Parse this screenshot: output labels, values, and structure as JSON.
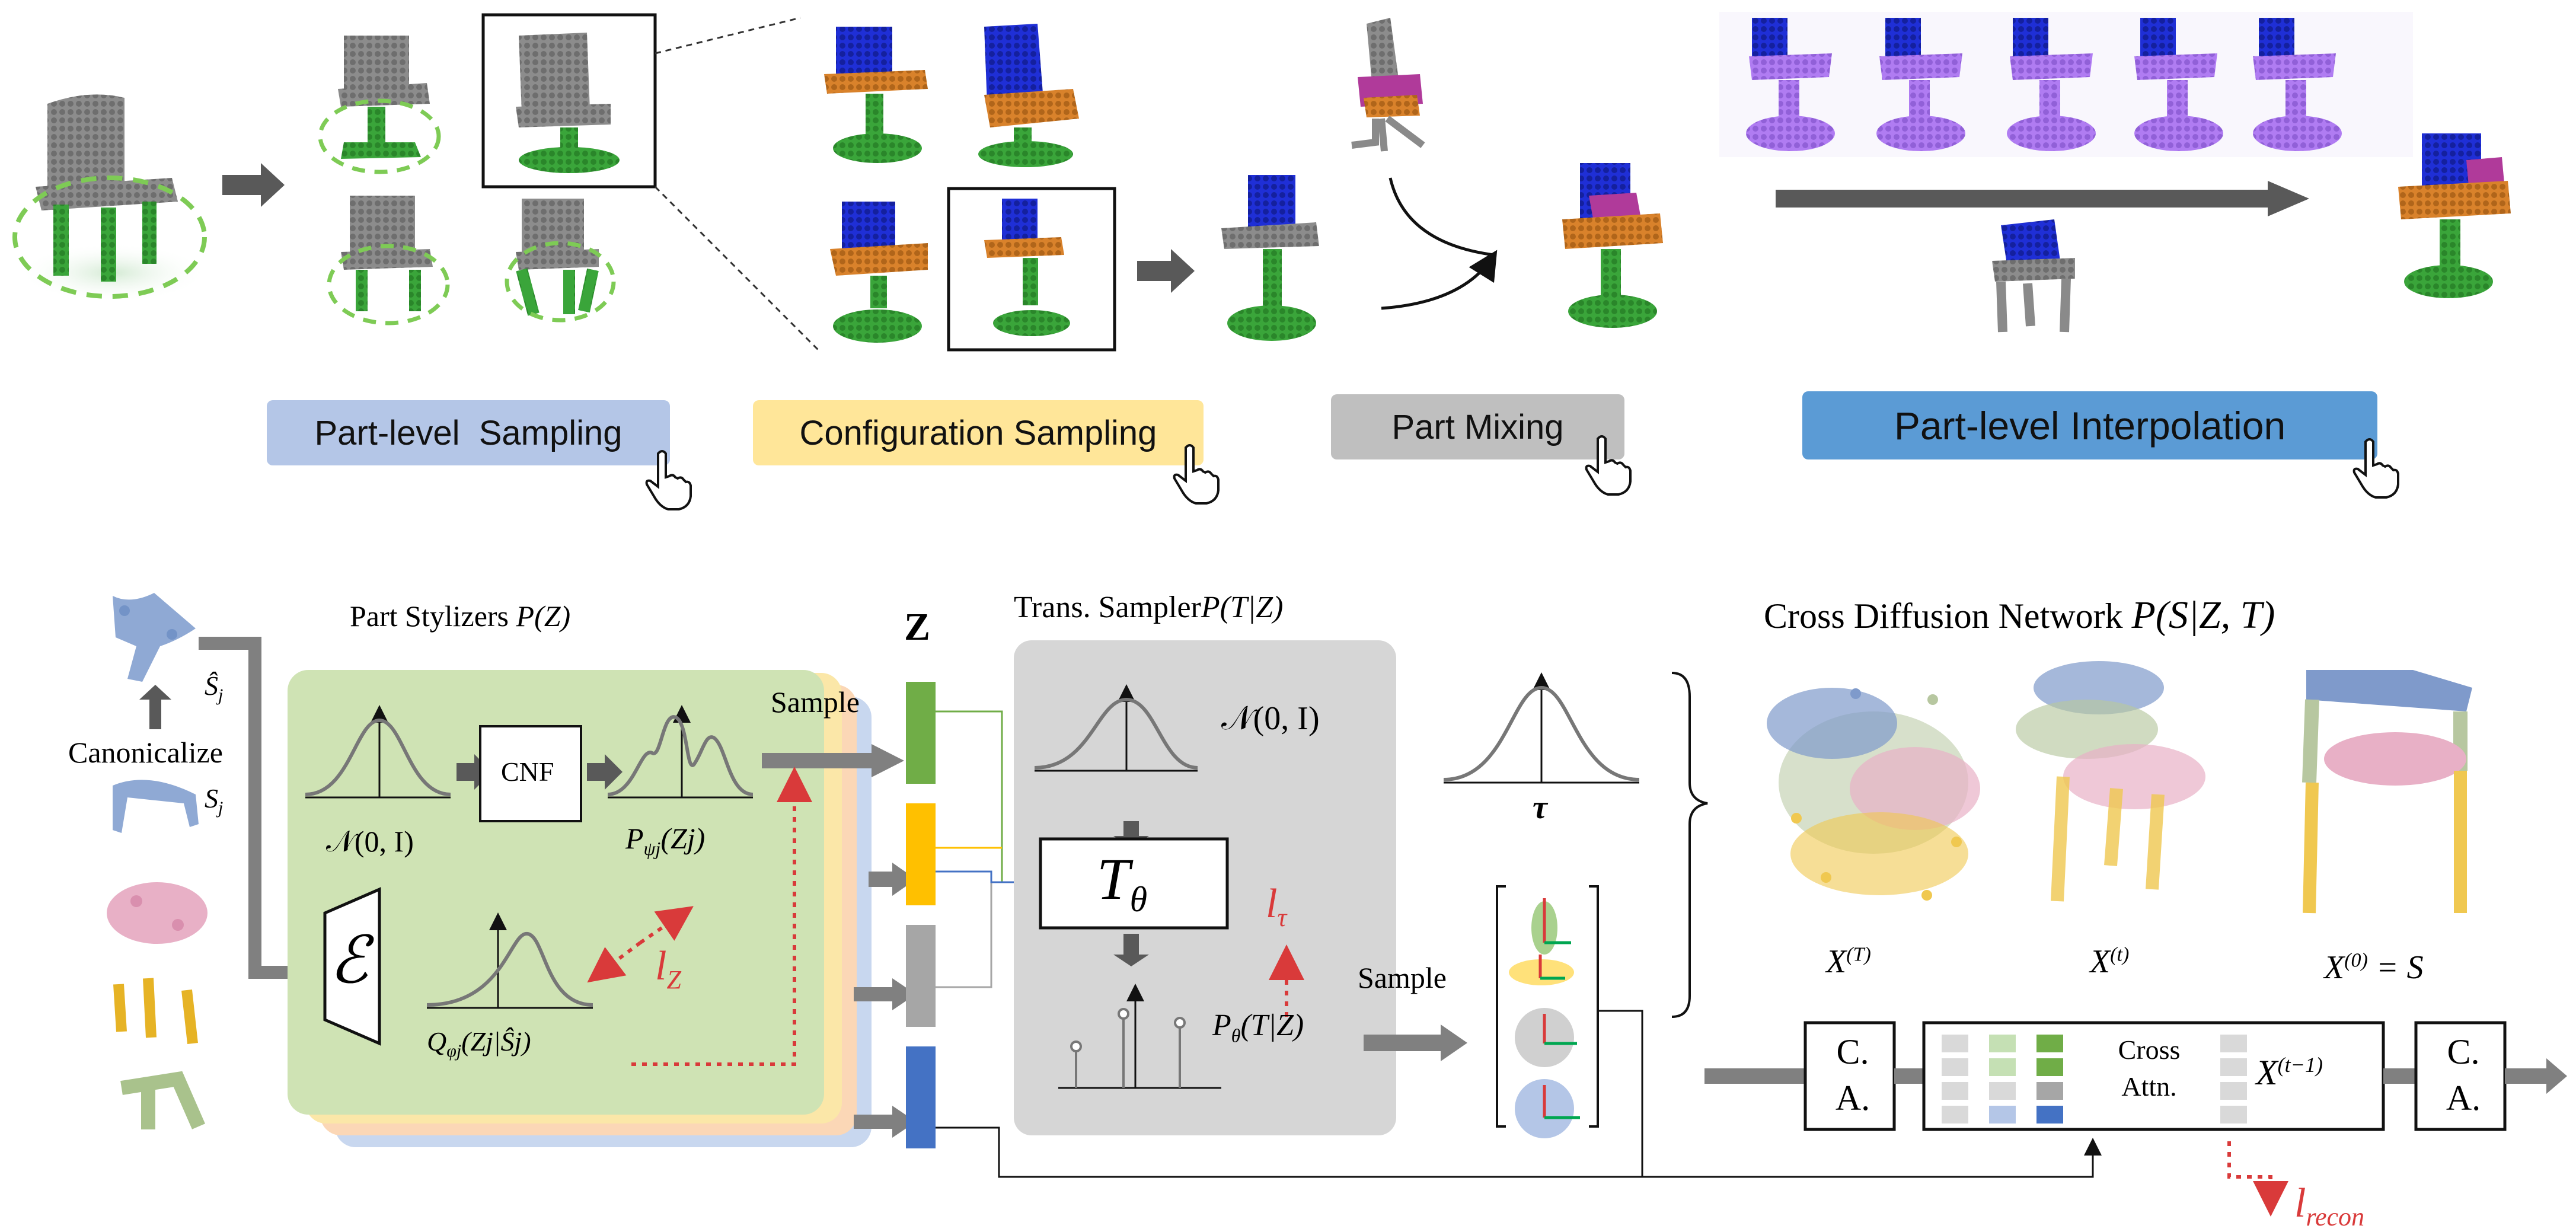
{
  "top": {
    "buttons": {
      "part_level_sampling": "Part-level  Sampling",
      "configuration_sampling": "Configuration Sampling",
      "part_mixing": "Part Mixing",
      "part_level_interpolation": "Part-level Interpolation"
    }
  },
  "bottom": {
    "canonicalize": "Canonicalize",
    "s_hat_j": "Ŝ",
    "s_j": "S",
    "sub_j": "j",
    "part_stylizers": "Part Stylizers ",
    "part_stylizers_math": "P(Z)",
    "cnf": "CNF",
    "normal": "𝒩(0, I)",
    "p_psi": "P",
    "p_psi_sub": "ψj",
    "p_psi_arg": "(Zj)",
    "encoder": "ℰ",
    "q_phi": "Q",
    "q_phi_sub": "φj",
    "q_phi_arg": "(Zj|Ŝj)",
    "l_z": "l",
    "l_z_sub": "Z",
    "sample1": "Sample",
    "z_label": "Z",
    "trans_sampler": "Trans. Sampler",
    "trans_sampler_math": "P(T|Z)",
    "normal2": "𝒩(0, I)",
    "t_theta": "T",
    "t_theta_sub": "θ",
    "l_tau": "l",
    "l_tau_sub": "τ",
    "p_theta": "P",
    "p_theta_sub": "θ",
    "p_theta_arg": "(T|Z)",
    "sample2": "Sample",
    "tau": "τ",
    "cross_diffusion": "Cross Diffusion Network ",
    "cross_diffusion_math": "P(S|Z, T)",
    "x_T": "X",
    "x_T_sup": "(T)",
    "x_t": "X",
    "x_t_sup": "(t)",
    "x_0": "X",
    "x_0_sup": "(0)",
    "x_0_eq": "= S",
    "ca_1": "C.",
    "ca_2": "A.",
    "cross_attn_1": "Cross",
    "cross_attn_2": "Attn.",
    "x_tm1": "X",
    "x_tm1_sup": "(t−1)",
    "l_recon": "l",
    "l_recon_sub": "recon"
  },
  "colors": {
    "green_part": "#3aa53a",
    "orange_part": "#d9822b",
    "blue_part": "#1f2fd6",
    "gray_part": "#8a8a8a",
    "purple_part": "#b07cf2",
    "magenta_part": "#b03a9a",
    "btn_blue_light": "#b4c6e7",
    "btn_yellow": "#ffe699",
    "btn_gray": "#bfbfbf",
    "btn_blue": "#5b9bd5",
    "stylizer_green": "#cfe3b4",
    "sampler_gray": "#d6d6d6",
    "loss_red": "#d93a3a",
    "z_green": "#70ad47",
    "z_yellow": "#ffc000",
    "z_gray": "#a6a6a6",
    "z_blue": "#4472c4"
  }
}
